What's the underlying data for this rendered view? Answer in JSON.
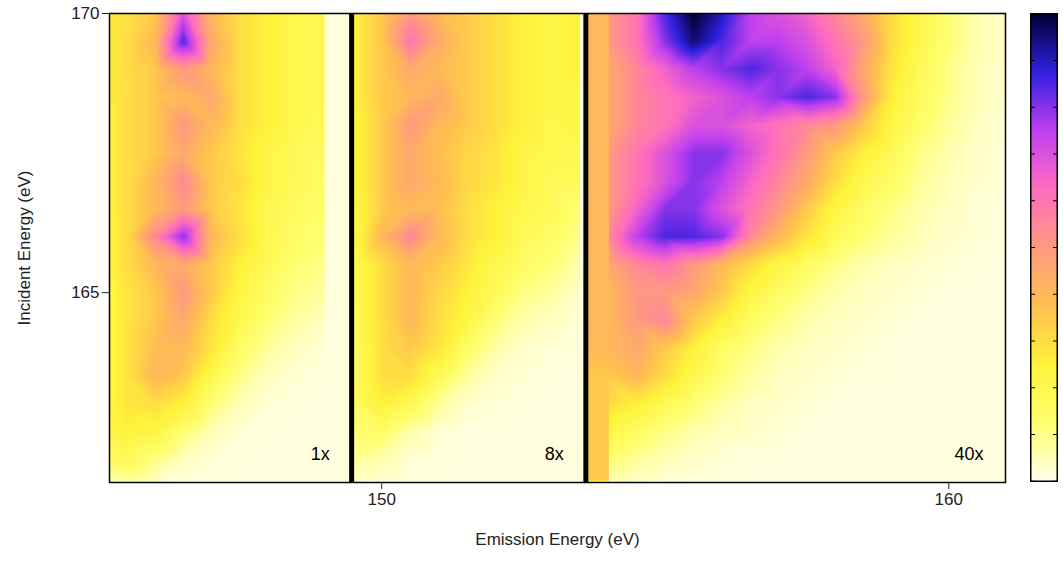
{
  "chart_data": {
    "type": "heatmap",
    "x_label": "Emission Energy (eV)",
    "y_label": "Incident Energy (eV)",
    "xlim": [
      145.2,
      161
    ],
    "ylim": [
      161.6,
      170
    ],
    "xticks": [
      150,
      160
    ],
    "yticks": [
      165,
      170
    ],
    "panels": [
      {
        "label": "1x",
        "xlim": [
          145.2,
          149.47
        ]
      },
      {
        "label": "8x",
        "xlim": [
          149.47,
          153.6
        ]
      },
      {
        "label": "40x",
        "xlim": [
          153.6,
          161
        ]
      }
    ],
    "emission": [
      145,
      145.5,
      146,
      146.5,
      147,
      147.5,
      148,
      148.5,
      149,
      149.5,
      150,
      150.5,
      151,
      151.5,
      152,
      152.5,
      153,
      153.5,
      154,
      154.5,
      155,
      155.5,
      156,
      156.5,
      157,
      157.5,
      158,
      158.5,
      159,
      159.5,
      160,
      160.5,
      161
    ],
    "incident": [
      170,
      169.5,
      169,
      168.5,
      168,
      167.5,
      167,
      166.5,
      166,
      165.5,
      165,
      164.5,
      164,
      163.5,
      163,
      162.5,
      162,
      161.5
    ],
    "intensity": [
      [
        0.25,
        0.3,
        0.35,
        0.7,
        0.4,
        0.3,
        0.25,
        0.2,
        0.2,
        0.25,
        0.35,
        0.5,
        0.4,
        0.35,
        0.3,
        0.25,
        0.22,
        0.25,
        0.5,
        0.6,
        0.85,
        1.0,
        0.9,
        0.75,
        0.7,
        0.65,
        0.55,
        0.45,
        0.3,
        0.2,
        0.12,
        0.06,
        0.03
      ],
      [
        0.25,
        0.3,
        0.4,
        0.85,
        0.45,
        0.3,
        0.25,
        0.2,
        0.2,
        0.25,
        0.35,
        0.6,
        0.45,
        0.35,
        0.3,
        0.25,
        0.22,
        0.25,
        0.5,
        0.6,
        0.8,
        0.95,
        0.85,
        0.75,
        0.75,
        0.7,
        0.6,
        0.5,
        0.3,
        0.2,
        0.12,
        0.06,
        0.03
      ],
      [
        0.25,
        0.3,
        0.35,
        0.5,
        0.4,
        0.3,
        0.25,
        0.2,
        0.2,
        0.25,
        0.35,
        0.45,
        0.4,
        0.35,
        0.3,
        0.25,
        0.22,
        0.25,
        0.45,
        0.55,
        0.65,
        0.75,
        0.8,
        0.85,
        0.8,
        0.75,
        0.65,
        0.45,
        0.28,
        0.18,
        0.1,
        0.05,
        0.03
      ],
      [
        0.25,
        0.3,
        0.35,
        0.4,
        0.45,
        0.3,
        0.25,
        0.2,
        0.2,
        0.25,
        0.35,
        0.4,
        0.45,
        0.35,
        0.3,
        0.25,
        0.22,
        0.22,
        0.45,
        0.55,
        0.6,
        0.65,
        0.7,
        0.75,
        0.8,
        0.85,
        0.8,
        0.5,
        0.25,
        0.16,
        0.1,
        0.05,
        0.03
      ],
      [
        0.22,
        0.3,
        0.35,
        0.5,
        0.4,
        0.3,
        0.25,
        0.2,
        0.18,
        0.22,
        0.35,
        0.5,
        0.4,
        0.35,
        0.3,
        0.25,
        0.2,
        0.22,
        0.45,
        0.55,
        0.6,
        0.7,
        0.7,
        0.65,
        0.6,
        0.55,
        0.5,
        0.35,
        0.22,
        0.14,
        0.08,
        0.04,
        0.02
      ],
      [
        0.22,
        0.3,
        0.35,
        0.45,
        0.35,
        0.28,
        0.22,
        0.18,
        0.16,
        0.22,
        0.35,
        0.45,
        0.38,
        0.32,
        0.28,
        0.22,
        0.2,
        0.2,
        0.5,
        0.6,
        0.7,
        0.8,
        0.8,
        0.7,
        0.6,
        0.5,
        0.35,
        0.25,
        0.18,
        0.1,
        0.06,
        0.03,
        0.02
      ],
      [
        0.22,
        0.3,
        0.4,
        0.55,
        0.35,
        0.3,
        0.22,
        0.18,
        0.15,
        0.22,
        0.35,
        0.45,
        0.4,
        0.32,
        0.28,
        0.22,
        0.18,
        0.18,
        0.5,
        0.6,
        0.7,
        0.8,
        0.75,
        0.65,
        0.55,
        0.45,
        0.3,
        0.2,
        0.15,
        0.08,
        0.05,
        0.03,
        0.02
      ],
      [
        0.22,
        0.3,
        0.4,
        0.5,
        0.35,
        0.28,
        0.2,
        0.16,
        0.14,
        0.2,
        0.35,
        0.4,
        0.38,
        0.3,
        0.25,
        0.2,
        0.18,
        0.12,
        0.5,
        0.65,
        0.8,
        0.8,
        0.7,
        0.6,
        0.5,
        0.35,
        0.22,
        0.15,
        0.1,
        0.06,
        0.04,
        0.02,
        0.01
      ],
      [
        0.2,
        0.3,
        0.55,
        0.8,
        0.4,
        0.3,
        0.2,
        0.15,
        0.12,
        0.2,
        0.4,
        0.55,
        0.4,
        0.3,
        0.25,
        0.18,
        0.15,
        0.1,
        0.55,
        0.75,
        0.85,
        0.85,
        0.8,
        0.55,
        0.4,
        0.28,
        0.18,
        0.12,
        0.08,
        0.05,
        0.03,
        0.02,
        0.01
      ],
      [
        0.2,
        0.3,
        0.4,
        0.45,
        0.35,
        0.25,
        0.18,
        0.12,
        0.1,
        0.18,
        0.3,
        0.4,
        0.35,
        0.28,
        0.2,
        0.15,
        0.12,
        0.06,
        0.45,
        0.55,
        0.6,
        0.5,
        0.4,
        0.3,
        0.22,
        0.15,
        0.1,
        0.06,
        0.04,
        0.03,
        0.02,
        0.01,
        0.01
      ],
      [
        0.2,
        0.28,
        0.35,
        0.5,
        0.35,
        0.22,
        0.15,
        0.1,
        0.08,
        0.18,
        0.3,
        0.4,
        0.32,
        0.25,
        0.18,
        0.1,
        0.08,
        0.03,
        0.4,
        0.5,
        0.5,
        0.45,
        0.35,
        0.22,
        0.15,
        0.1,
        0.06,
        0.04,
        0.03,
        0.02,
        0.01,
        0.01,
        0.01
      ],
      [
        0.2,
        0.28,
        0.35,
        0.45,
        0.3,
        0.2,
        0.12,
        0.07,
        0.04,
        0.16,
        0.3,
        0.4,
        0.3,
        0.22,
        0.12,
        0.06,
        0.04,
        0.02,
        0.4,
        0.5,
        0.55,
        0.35,
        0.25,
        0.15,
        0.1,
        0.06,
        0.04,
        0.03,
        0.02,
        0.01,
        0.01,
        0.01,
        0.01
      ],
      [
        0.2,
        0.28,
        0.38,
        0.4,
        0.28,
        0.15,
        0.08,
        0.04,
        0.02,
        0.15,
        0.3,
        0.35,
        0.28,
        0.15,
        0.07,
        0.03,
        0.02,
        0.01,
        0.4,
        0.45,
        0.35,
        0.25,
        0.15,
        0.1,
        0.06,
        0.04,
        0.03,
        0.02,
        0.01,
        0.01,
        0.01,
        0.01,
        0.01
      ],
      [
        0.2,
        0.28,
        0.4,
        0.35,
        0.2,
        0.1,
        0.04,
        0.02,
        0.01,
        0.15,
        0.3,
        0.3,
        0.18,
        0.08,
        0.03,
        0.02,
        0.01,
        0.01,
        0.35,
        0.4,
        0.3,
        0.2,
        0.12,
        0.07,
        0.04,
        0.03,
        0.02,
        0.01,
        0.01,
        0.01,
        0.01,
        0.01,
        0.01
      ],
      [
        0.2,
        0.28,
        0.3,
        0.25,
        0.12,
        0.05,
        0.02,
        0.01,
        0.01,
        0.15,
        0.25,
        0.18,
        0.08,
        0.03,
        0.02,
        0.01,
        0.01,
        0.01,
        0.3,
        0.25,
        0.18,
        0.12,
        0.07,
        0.04,
        0.03,
        0.02,
        0.01,
        0.01,
        0.01,
        0.01,
        0.01,
        0.01,
        0.01
      ],
      [
        0.18,
        0.25,
        0.22,
        0.12,
        0.05,
        0.02,
        0.01,
        0.01,
        0.01,
        0.12,
        0.15,
        0.06,
        0.02,
        0.01,
        0.01,
        0.01,
        0.01,
        0.01,
        0.22,
        0.15,
        0.1,
        0.06,
        0.04,
        0.03,
        0.02,
        0.01,
        0.01,
        0.01,
        0.01,
        0.01,
        0.01,
        0.01,
        0.01
      ],
      [
        0.15,
        0.18,
        0.1,
        0.04,
        0.02,
        0.01,
        0.01,
        0.01,
        0.01,
        0.08,
        0.06,
        0.02,
        0.01,
        0.01,
        0.01,
        0.01,
        0.01,
        0.01,
        0.12,
        0.08,
        0.05,
        0.03,
        0.02,
        0.01,
        0.01,
        0.01,
        0.01,
        0.01,
        0.01,
        0.01,
        0.01,
        0.01,
        0.01
      ],
      [
        0.04,
        0.03,
        0.02,
        0.01,
        0.01,
        0.01,
        0.01,
        0.01,
        0.01,
        0.02,
        0.01,
        0.01,
        0.01,
        0.01,
        0.01,
        0.01,
        0.01,
        0.01,
        0.02,
        0.02,
        0.01,
        0.01,
        0.01,
        0.01,
        0.01,
        0.01,
        0.01,
        0.01,
        0.01,
        0.01,
        0.01,
        0.01,
        0.01
      ]
    ],
    "color_range": [
      0,
      1
    ],
    "color_ticks": [
      0,
      0.1,
      0.2,
      0.3,
      0.4,
      0.5,
      0.6,
      0.7,
      0.8,
      0.9,
      1
    ]
  }
}
